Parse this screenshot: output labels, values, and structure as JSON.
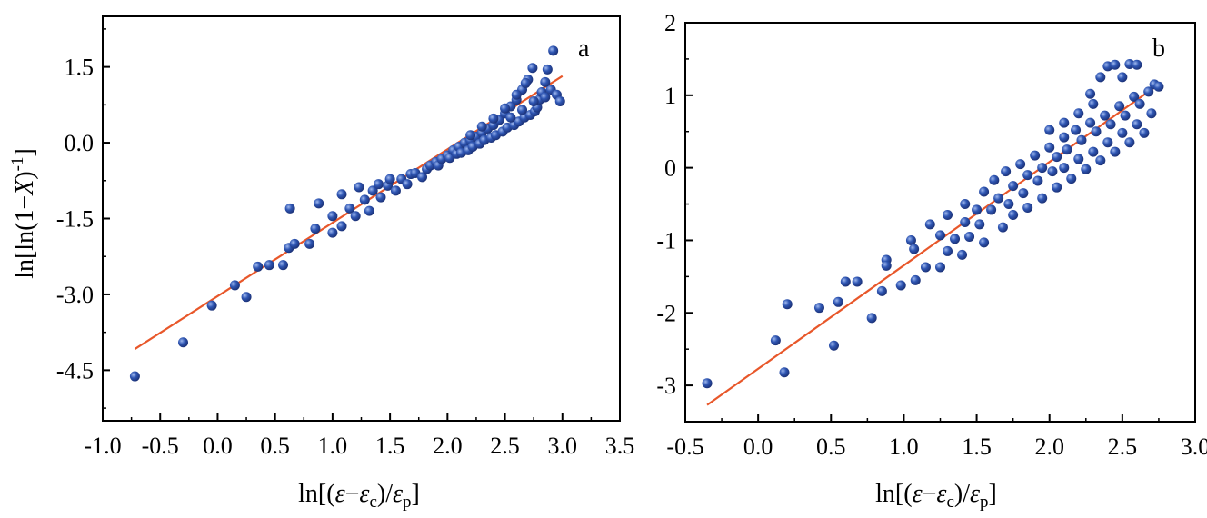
{
  "chart_data": [
    {
      "type": "scatter",
      "panel_label": "a",
      "xlim": [
        -1.0,
        3.5
      ],
      "ylim": [
        -5.5,
        2.5
      ],
      "x_ticks": [
        "-1.0",
        "-0.5",
        "0.0",
        "0.5",
        "1.0",
        "1.5",
        "2.0",
        "2.5",
        "3.0",
        "3.5"
      ],
      "x_tick_values": [
        -1.0,
        -0.5,
        0.0,
        0.5,
        1.0,
        1.5,
        2.0,
        2.5,
        3.0,
        3.5
      ],
      "y_ticks": [
        "1.5",
        "0.0",
        "-1.5",
        "-3.0",
        "-4.5"
      ],
      "y_tick_values": [
        1.5,
        0.0,
        -1.5,
        -3.0,
        -4.5
      ],
      "xlabel": "ln[(ε−εc)/εp]",
      "ylabel": "ln[ln(1−X)-1]",
      "fit_line": {
        "x": [
          -0.72,
          3.0
        ],
        "y": [
          -4.08,
          1.32
        ],
        "color": "#E8572A"
      },
      "marker_color": "#2A4FA8",
      "points": [
        [
          -0.72,
          -4.62
        ],
        [
          -0.3,
          -3.95
        ],
        [
          -0.05,
          -3.22
        ],
        [
          0.15,
          -2.82
        ],
        [
          0.25,
          -3.05
        ],
        [
          0.35,
          -2.45
        ],
        [
          0.45,
          -2.42
        ],
        [
          0.57,
          -2.42
        ],
        [
          0.62,
          -2.08
        ],
        [
          0.67,
          -2.0
        ],
        [
          0.63,
          -1.3
        ],
        [
          0.8,
          -2.0
        ],
        [
          0.85,
          -1.7
        ],
        [
          0.88,
          -1.2
        ],
        [
          1.0,
          -1.78
        ],
        [
          1.0,
          -1.45
        ],
        [
          1.08,
          -1.65
        ],
        [
          1.08,
          -1.02
        ],
        [
          1.15,
          -1.3
        ],
        [
          1.2,
          -1.45
        ],
        [
          1.23,
          -0.88
        ],
        [
          1.28,
          -1.13
        ],
        [
          1.32,
          -1.35
        ],
        [
          1.35,
          -0.95
        ],
        [
          1.4,
          -0.82
        ],
        [
          1.42,
          -1.08
        ],
        [
          1.48,
          -0.85
        ],
        [
          1.5,
          -0.72
        ],
        [
          1.55,
          -0.95
        ],
        [
          1.6,
          -0.72
        ],
        [
          1.65,
          -0.82
        ],
        [
          1.68,
          -0.62
        ],
        [
          1.72,
          -0.6
        ],
        [
          1.78,
          -0.68
        ],
        [
          1.82,
          -0.52
        ],
        [
          1.85,
          -0.45
        ],
        [
          1.9,
          -0.38
        ],
        [
          1.92,
          -0.45
        ],
        [
          1.95,
          -0.32
        ],
        [
          2.0,
          -0.25
        ],
        [
          2.02,
          -0.3
        ],
        [
          2.05,
          -0.15
        ],
        [
          2.08,
          -0.22
        ],
        [
          2.1,
          -0.08
        ],
        [
          2.12,
          -0.2
        ],
        [
          2.15,
          0.0
        ],
        [
          2.18,
          -0.15
        ],
        [
          2.2,
          0.05
        ],
        [
          2.22,
          -0.08
        ],
        [
          2.25,
          0.12
        ],
        [
          2.28,
          -0.02
        ],
        [
          2.3,
          0.2
        ],
        [
          2.32,
          0.05
        ],
        [
          2.35,
          0.28
        ],
        [
          2.38,
          0.1
        ],
        [
          2.4,
          0.35
        ],
        [
          2.42,
          0.15
        ],
        [
          2.45,
          0.45
        ],
        [
          2.48,
          0.22
        ],
        [
          2.5,
          0.58
        ],
        [
          2.52,
          0.3
        ],
        [
          2.55,
          0.72
        ],
        [
          2.58,
          0.35
        ],
        [
          2.6,
          0.85
        ],
        [
          2.62,
          0.42
        ],
        [
          2.65,
          1.05
        ],
        [
          2.67,
          0.5
        ],
        [
          2.7,
          1.25
        ],
        [
          2.72,
          0.55
        ],
        [
          2.74,
          1.48
        ],
        [
          2.76,
          0.62
        ],
        [
          2.78,
          0.7
        ],
        [
          2.8,
          0.85
        ],
        [
          2.82,
          1.0
        ],
        [
          2.85,
          0.9
        ],
        [
          2.87,
          1.45
        ],
        [
          2.9,
          1.05
        ],
        [
          2.92,
          1.82
        ],
        [
          2.95,
          0.95
        ],
        [
          2.98,
          0.82
        ],
        [
          2.2,
          0.15
        ],
        [
          2.3,
          0.32
        ],
        [
          2.4,
          0.48
        ],
        [
          2.5,
          0.68
        ],
        [
          2.6,
          0.95
        ],
        [
          2.68,
          1.18
        ],
        [
          2.55,
          0.5
        ],
        [
          2.65,
          0.65
        ],
        [
          2.75,
          0.82
        ],
        [
          2.85,
          1.2
        ]
      ]
    },
    {
      "type": "scatter",
      "panel_label": "b",
      "xlim": [
        -0.5,
        3.0
      ],
      "ylim": [
        -3.5,
        2.0
      ],
      "x_ticks": [
        "-0.5",
        "0.0",
        "0.5",
        "1.0",
        "1.5",
        "2.0",
        "2.5",
        "3.0"
      ],
      "x_tick_values": [
        -0.5,
        0.0,
        0.5,
        1.0,
        1.5,
        2.0,
        2.5,
        3.0
      ],
      "y_ticks": [
        "2",
        "1",
        "0",
        "-1",
        "-2",
        "-3"
      ],
      "y_tick_values": [
        2,
        1,
        0,
        -1,
        -2,
        -3
      ],
      "xlabel": "ln[(ε−εc)/εp]",
      "ylabel": "",
      "fit_line": {
        "x": [
          -0.35,
          2.75
        ],
        "y": [
          -3.27,
          1.15
        ],
        "color": "#E8572A"
      },
      "marker_color": "#2A4FA8",
      "points": [
        [
          -0.35,
          -2.97
        ],
        [
          0.12,
          -2.38
        ],
        [
          0.18,
          -2.82
        ],
        [
          0.2,
          -1.88
        ],
        [
          0.42,
          -1.93
        ],
        [
          0.52,
          -2.45
        ],
        [
          0.55,
          -1.85
        ],
        [
          0.6,
          -1.57
        ],
        [
          0.68,
          -1.57
        ],
        [
          0.78,
          -2.07
        ],
        [
          0.85,
          -1.7
        ],
        [
          0.88,
          -1.27
        ],
        [
          0.88,
          -1.35
        ],
        [
          0.98,
          -1.62
        ],
        [
          1.05,
          -1.0
        ],
        [
          1.07,
          -1.12
        ],
        [
          1.08,
          -1.55
        ],
        [
          1.15,
          -1.37
        ],
        [
          1.18,
          -0.78
        ],
        [
          1.25,
          -1.37
        ],
        [
          1.25,
          -0.93
        ],
        [
          1.3,
          -0.65
        ],
        [
          1.3,
          -1.15
        ],
        [
          1.35,
          -0.98
        ],
        [
          1.4,
          -1.2
        ],
        [
          1.42,
          -0.75
        ],
        [
          1.42,
          -0.5
        ],
        [
          1.45,
          -0.95
        ],
        [
          1.5,
          -0.58
        ],
        [
          1.52,
          -0.78
        ],
        [
          1.55,
          -0.33
        ],
        [
          1.55,
          -1.03
        ],
        [
          1.6,
          -0.58
        ],
        [
          1.62,
          -0.17
        ],
        [
          1.65,
          -0.42
        ],
        [
          1.68,
          -0.82
        ],
        [
          1.7,
          -0.05
        ],
        [
          1.72,
          -0.5
        ],
        [
          1.75,
          -0.25
        ],
        [
          1.75,
          -0.65
        ],
        [
          1.8,
          0.05
        ],
        [
          1.82,
          -0.35
        ],
        [
          1.85,
          -0.1
        ],
        [
          1.85,
          -0.55
        ],
        [
          1.9,
          0.17
        ],
        [
          1.92,
          -0.18
        ],
        [
          1.95,
          0.0
        ],
        [
          1.95,
          -0.42
        ],
        [
          2.0,
          0.28
        ],
        [
          2.02,
          -0.05
        ],
        [
          2.05,
          0.15
        ],
        [
          2.05,
          -0.27
        ],
        [
          2.1,
          0.42
        ],
        [
          2.1,
          0.0
        ],
        [
          2.12,
          0.25
        ],
        [
          2.15,
          -0.15
        ],
        [
          2.18,
          0.52
        ],
        [
          2.2,
          0.12
        ],
        [
          2.22,
          0.38
        ],
        [
          2.25,
          -0.02
        ],
        [
          2.28,
          0.62
        ],
        [
          2.3,
          0.22
        ],
        [
          2.32,
          0.5
        ],
        [
          2.35,
          0.1
        ],
        [
          2.38,
          0.72
        ],
        [
          2.4,
          0.35
        ],
        [
          2.42,
          0.6
        ],
        [
          2.45,
          0.22
        ],
        [
          2.48,
          0.85
        ],
        [
          2.5,
          0.48
        ],
        [
          2.52,
          0.72
        ],
        [
          2.55,
          0.35
        ],
        [
          2.58,
          0.98
        ],
        [
          2.6,
          0.6
        ],
        [
          2.62,
          0.88
        ],
        [
          2.65,
          0.48
        ],
        [
          2.68,
          1.05
        ],
        [
          2.7,
          0.75
        ],
        [
          2.72,
          1.15
        ],
        [
          2.75,
          1.12
        ],
        [
          2.28,
          1.02
        ],
        [
          2.35,
          1.25
        ],
        [
          2.4,
          1.4
        ],
        [
          2.45,
          1.42
        ],
        [
          2.55,
          1.43
        ],
        [
          2.6,
          1.42
        ],
        [
          2.5,
          1.25
        ],
        [
          2.3,
          0.88
        ],
        [
          2.2,
          0.75
        ],
        [
          2.1,
          0.62
        ],
        [
          2.0,
          0.52
        ]
      ]
    }
  ]
}
